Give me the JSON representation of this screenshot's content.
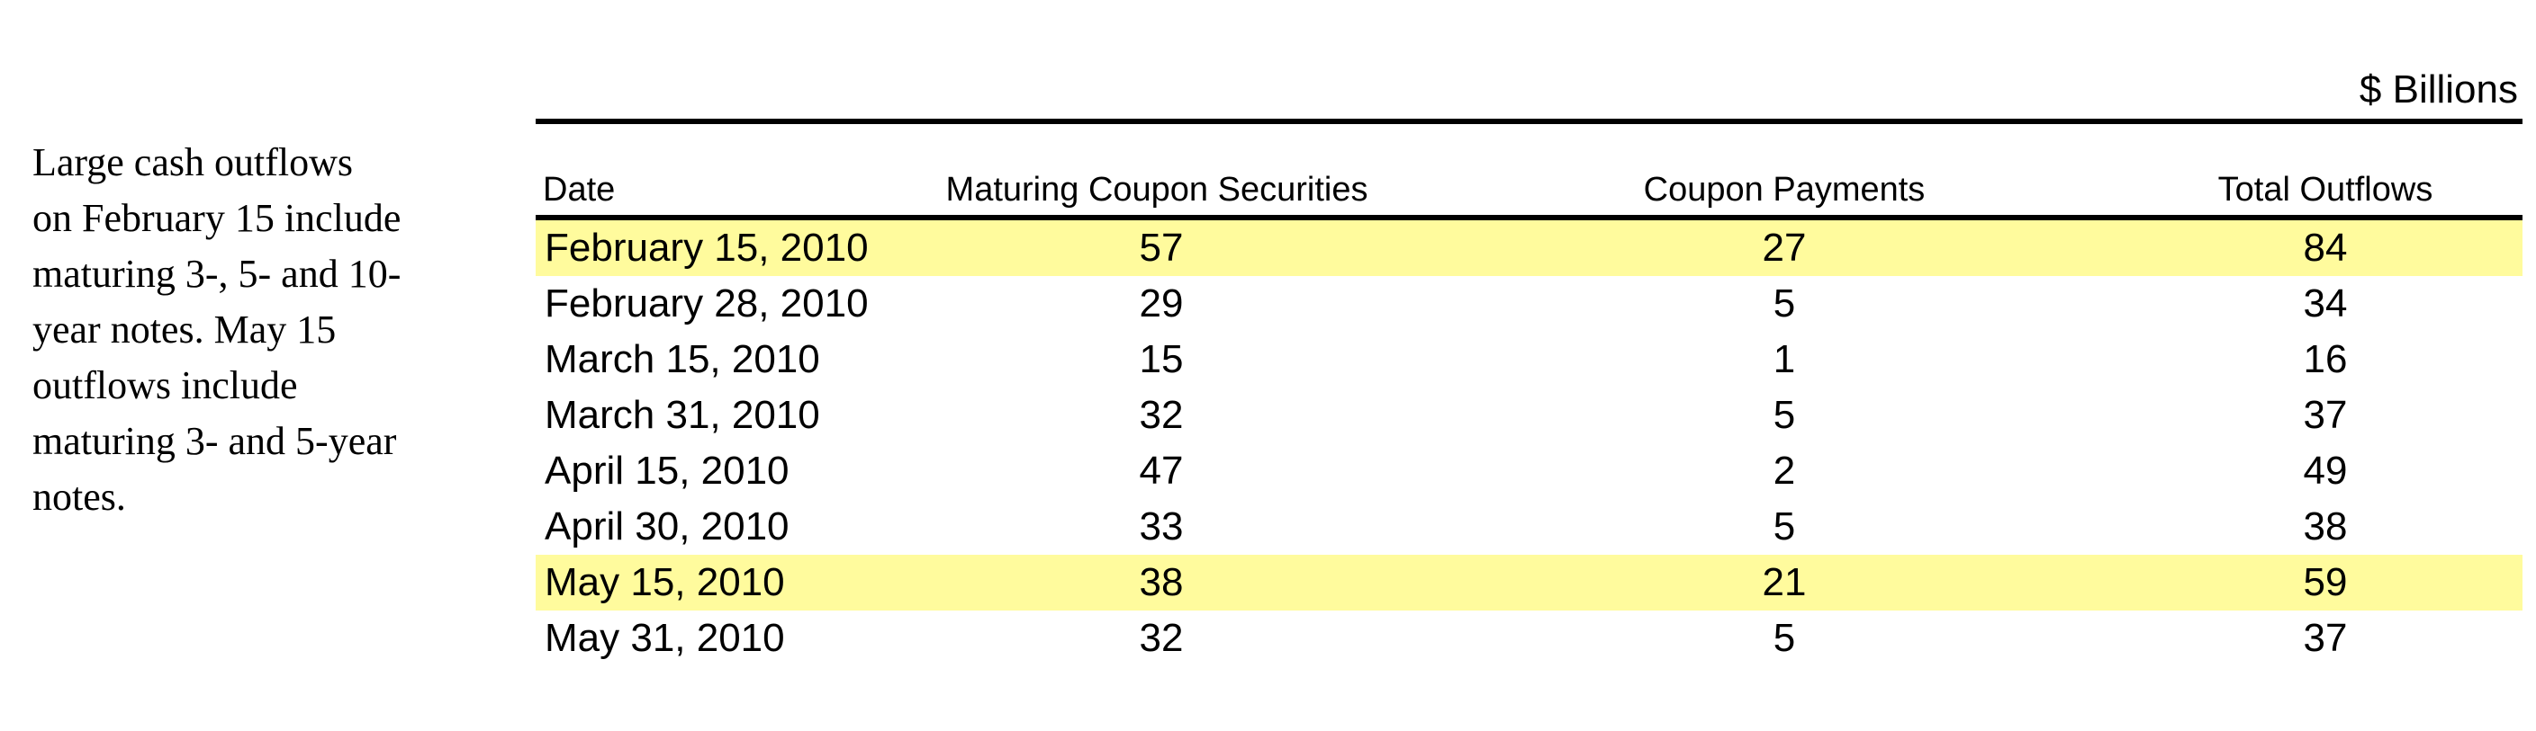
{
  "note": {
    "lines": [
      "Large cash outflows",
      "on February 15 include",
      "maturing 3-, 5- and 10-",
      "year notes.  May 15",
      "outflows include",
      "maturing 3- and 5-year",
      "notes."
    ]
  },
  "table": {
    "units": "$ Billions",
    "columns": [
      "Date",
      "Maturing Coupon Securities",
      "Coupon Payments",
      "Total Outflows"
    ],
    "rows": [
      {
        "date": "February 15, 2010",
        "maturing": "57",
        "coupon": "27",
        "total": "84",
        "highlight": true
      },
      {
        "date": "February 28, 2010",
        "maturing": "29",
        "coupon": "5",
        "total": "34",
        "highlight": false
      },
      {
        "date": "March 15, 2010",
        "maturing": "15",
        "coupon": "1",
        "total": "16",
        "highlight": false
      },
      {
        "date": "March 31, 2010",
        "maturing": "32",
        "coupon": "5",
        "total": "37",
        "highlight": false
      },
      {
        "date": "April 15, 2010",
        "maturing": "47",
        "coupon": "2",
        "total": "49",
        "highlight": false
      },
      {
        "date": "April 30, 2010",
        "maturing": "33",
        "coupon": "5",
        "total": "38",
        "highlight": false
      },
      {
        "date": "May 15, 2010",
        "maturing": "38",
        "coupon": "21",
        "total": "59",
        "highlight": true
      },
      {
        "date": "May 31, 2010",
        "maturing": "32",
        "coupon": "5",
        "total": "37",
        "highlight": false
      }
    ],
    "highlight_color": "#fffb9d"
  }
}
